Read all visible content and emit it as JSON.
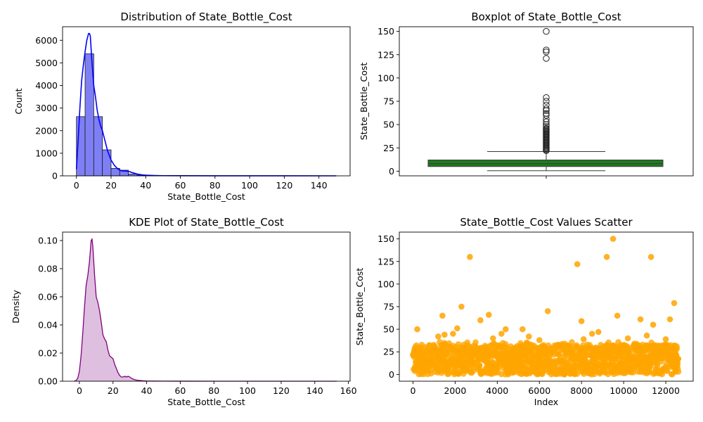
{
  "chart_data": [
    {
      "type": "histogram",
      "title": "Distribution of State_Bottle_Cost",
      "xlabel": "State_Bottle_Cost",
      "ylabel": "Count",
      "xlim": [
        -8,
        158
      ],
      "ylim": [
        0,
        6600
      ],
      "xticks": [
        0,
        20,
        40,
        60,
        80,
        100,
        120,
        140
      ],
      "yticks": [
        0,
        1000,
        2000,
        3000,
        4000,
        5000,
        6000
      ],
      "bin_width": 5,
      "bins": [
        {
          "start": 0,
          "count": 2620
        },
        {
          "start": 5,
          "count": 5400
        },
        {
          "start": 10,
          "count": 2620
        },
        {
          "start": 15,
          "count": 1150
        },
        {
          "start": 20,
          "count": 330
        },
        {
          "start": 25,
          "count": 250
        },
        {
          "start": 30,
          "count": 80
        },
        {
          "start": 35,
          "count": 30
        },
        {
          "start": 40,
          "count": 15
        },
        {
          "start": 45,
          "count": 10
        },
        {
          "start": 50,
          "count": 5
        },
        {
          "start": 55,
          "count": 3
        },
        {
          "start": 60,
          "count": 3
        },
        {
          "start": 65,
          "count": 2
        },
        {
          "start": 70,
          "count": 1
        },
        {
          "start": 75,
          "count": 1
        }
      ],
      "kde_curve": {
        "x": [
          0,
          1,
          2,
          3,
          4,
          5,
          6,
          7,
          7.5,
          8,
          9,
          10,
          11,
          12,
          13,
          14,
          15,
          16,
          17,
          18,
          19,
          20,
          22,
          24,
          26,
          28,
          30,
          32,
          35,
          38,
          40,
          45,
          50,
          60,
          80,
          100,
          120,
          150
        ],
        "y": [
          300,
          1600,
          3000,
          4200,
          4900,
          5500,
          6000,
          6300,
          6300,
          6200,
          5000,
          4000,
          3500,
          2900,
          2500,
          2200,
          2000,
          1700,
          1400,
          1100,
          900,
          700,
          450,
          300,
          220,
          210,
          200,
          150,
          80,
          40,
          30,
          15,
          8,
          5,
          3,
          2,
          1,
          0
        ]
      },
      "colors": {
        "bars": "#7f7ff5",
        "edge": "#1a1a1a",
        "line": "#0000ff"
      }
    },
    {
      "type": "boxplot",
      "title": "Boxplot of State_Bottle_Cost",
      "ylabel": "State_Bottle_Cost",
      "ylim": [
        -5,
        155
      ],
      "yticks": [
        0,
        25,
        50,
        75,
        100,
        125,
        150
      ],
      "box": {
        "whisker_low": 0.5,
        "q1": 5,
        "median": 8,
        "q3": 12,
        "whisker_high": 21
      },
      "outliers": [
        22,
        23,
        24,
        25,
        26,
        27,
        28,
        29,
        30,
        31,
        32,
        33,
        34,
        35,
        36,
        37,
        38,
        39,
        40,
        41,
        42,
        43,
        44,
        45,
        46,
        48,
        50,
        53,
        56,
        60,
        62,
        65,
        67,
        71,
        75,
        79,
        121,
        128,
        130,
        150
      ],
      "colors": {
        "box": "#1e7b1e",
        "edge": "#3a3a3a"
      }
    },
    {
      "type": "area",
      "title": "KDE Plot of State_Bottle_Cost",
      "xlabel": "State_Bottle_Cost",
      "ylabel": "Density",
      "xlim": [
        -10,
        161
      ],
      "ylim": [
        0,
        0.106
      ],
      "xticks": [
        0,
        20,
        40,
        60,
        80,
        100,
        120,
        140,
        160
      ],
      "yticks": [
        0.0,
        0.02,
        0.04,
        0.06,
        0.08,
        0.1
      ],
      "curve": {
        "x": [
          -3,
          -2,
          -1,
          0,
          1,
          2,
          3,
          4,
          5,
          6,
          7,
          7.5,
          8,
          9,
          10,
          11,
          12,
          13,
          14,
          15,
          16,
          17,
          18,
          19,
          20,
          21,
          22,
          23,
          24,
          25,
          26,
          27,
          28,
          29,
          30,
          31,
          32,
          33,
          35,
          38,
          40,
          45,
          50,
          60,
          80,
          100,
          120,
          140,
          153
        ],
        "y": [
          0,
          0.0005,
          0.002,
          0.007,
          0.018,
          0.034,
          0.052,
          0.068,
          0.075,
          0.085,
          0.1,
          0.101,
          0.096,
          0.076,
          0.06,
          0.056,
          0.05,
          0.042,
          0.033,
          0.03,
          0.028,
          0.022,
          0.018,
          0.017,
          0.016,
          0.012,
          0.009,
          0.006,
          0.004,
          0.003,
          0.003,
          0.0035,
          0.003,
          0.0035,
          0.003,
          0.002,
          0.0015,
          0.001,
          0.0006,
          0.0003,
          0.0002,
          0.0001,
          5e-05,
          2e-05,
          1e-05,
          0,
          0,
          0,
          0
        ]
      },
      "colors": {
        "line": "#800080",
        "fill": "#800080"
      }
    },
    {
      "type": "scatter",
      "title": "State_Bottle_Cost Values Scatter",
      "xlabel": "Index",
      "ylabel": "State_Bottle_Cost",
      "xlim": [
        -650,
        13300
      ],
      "ylim": [
        -7.5,
        157.5
      ],
      "xticks": [
        0,
        2000,
        4000,
        6000,
        8000,
        10000,
        12000
      ],
      "yticks": [
        0,
        25,
        50,
        75,
        100,
        125,
        150
      ],
      "x_range": [
        0,
        12600
      ],
      "notable_points": [
        {
          "x": 2700,
          "y": 130
        },
        {
          "x": 7800,
          "y": 122
        },
        {
          "x": 9200,
          "y": 130
        },
        {
          "x": 9500,
          "y": 150
        },
        {
          "x": 11300,
          "y": 130
        },
        {
          "x": 12400,
          "y": 79
        },
        {
          "x": 2300,
          "y": 75
        },
        {
          "x": 6400,
          "y": 70
        },
        {
          "x": 3600,
          "y": 66
        },
        {
          "x": 1400,
          "y": 65
        },
        {
          "x": 9700,
          "y": 65
        },
        {
          "x": 10800,
          "y": 61
        },
        {
          "x": 3200,
          "y": 60
        },
        {
          "x": 8000,
          "y": 59
        },
        {
          "x": 12200,
          "y": 61
        },
        {
          "x": 11400,
          "y": 55
        },
        {
          "x": 200,
          "y": 50
        },
        {
          "x": 2100,
          "y": 51
        },
        {
          "x": 4400,
          "y": 50
        },
        {
          "x": 5200,
          "y": 50
        },
        {
          "x": 8800,
          "y": 47
        },
        {
          "x": 1500,
          "y": 44
        },
        {
          "x": 1900,
          "y": 45
        },
        {
          "x": 4200,
          "y": 45
        },
        {
          "x": 8500,
          "y": 45
        },
        {
          "x": 5500,
          "y": 42
        },
        {
          "x": 11100,
          "y": 43
        },
        {
          "x": 1200,
          "y": 42
        },
        {
          "x": 3800,
          "y": 40
        },
        {
          "x": 6000,
          "y": 38
        },
        {
          "x": 8100,
          "y": 39
        },
        {
          "x": 10200,
          "y": 40
        },
        {
          "x": 12000,
          "y": 39
        }
      ],
      "colors": {
        "points": "#ffa500"
      }
    }
  ]
}
